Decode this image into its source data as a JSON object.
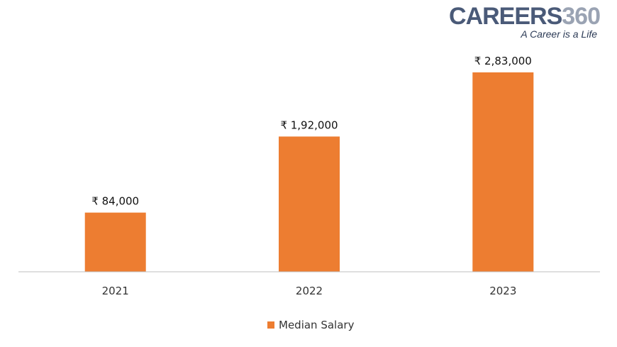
{
  "logo": {
    "word": "CAREERS",
    "number": "360",
    "tagline": "A Career is a Life"
  },
  "colors": {
    "bar": "#ED7D31",
    "axis": "#BFBFBF"
  },
  "chart_data": {
    "type": "bar",
    "categories": [
      "2021",
      "2022",
      "2023"
    ],
    "series": [
      {
        "name": "Median Salary",
        "values": [
          84000,
          192000,
          283000
        ]
      }
    ],
    "data_labels": [
      "₹ 84,000",
      "₹ 1,92,000",
      "₹ 2,83,000"
    ],
    "ylim": [
      0,
      283000
    ],
    "legend": "bottom",
    "grid": false
  }
}
